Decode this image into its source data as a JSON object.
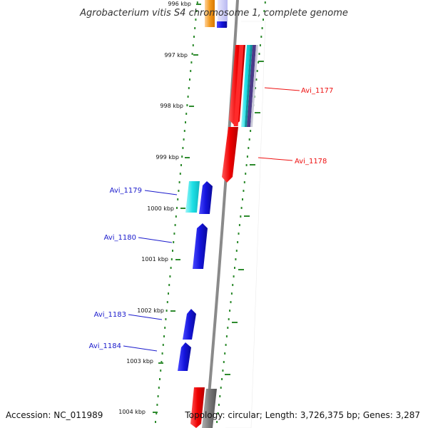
{
  "title": "Agrobacterium vitis S4 chromosome 1, complete genome",
  "accession": "Accession: NC_011989",
  "topology": "Topology: circular; Length: 3,726,375 bp; Genes: 3,287",
  "axis_ticks": [
    "996 kbp",
    "997 kbp",
    "998 kbp",
    "999 kbp",
    "1000 kbp",
    "1001 kbp",
    "1002 kbp",
    "1003 kbp",
    "1004 kbp"
  ],
  "gene_labels": [
    {
      "label": "Avi_1177",
      "strand": "forward",
      "color": "#ee1111"
    },
    {
      "label": "Avi_1178",
      "strand": "forward",
      "color": "#ee1111"
    },
    {
      "label": "Avi_1179",
      "strand": "reverse",
      "color": "#1a1acc"
    },
    {
      "label": "Avi_1180",
      "strand": "reverse",
      "color": "#1a1acc"
    },
    {
      "label": "Avi_1183",
      "strand": "reverse",
      "color": "#1a1acc"
    },
    {
      "label": "Avi_1184",
      "strand": "reverse",
      "color": "#1a1acc"
    }
  ],
  "colors": {
    "backbone": "#8a8a8a",
    "tick": "#2e8b2e",
    "forward_gene": "#ee1111",
    "reverse_gene": "#1a1acc",
    "cyan_feature": "#22d8e0",
    "orange_feature": "#f08a00",
    "gray_feature": "#777777"
  }
}
